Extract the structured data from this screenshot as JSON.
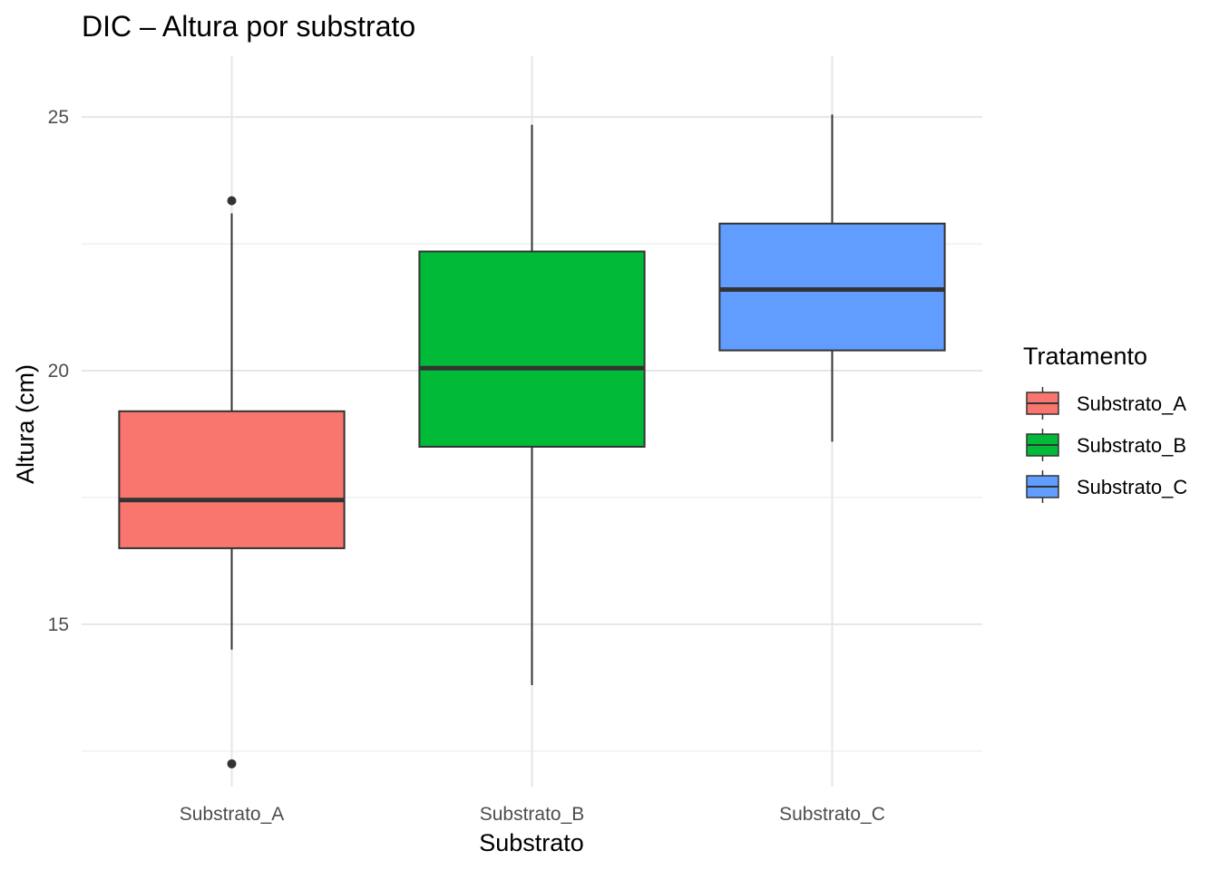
{
  "chart_data": {
    "type": "boxplot",
    "title": "DIC – Altura por substrato",
    "xlabel": "Substrato",
    "ylabel": "Altura (cm)",
    "ylim": [
      11.8,
      26.2
    ],
    "yticks": [
      15,
      20,
      25
    ],
    "grid": true,
    "legend": {
      "title": "Tratamento",
      "position": "right"
    },
    "categories": [
      "Substrato_A",
      "Substrato_B",
      "Substrato_C"
    ],
    "series": [
      {
        "name": "Substrato_A",
        "color": "#F8766D",
        "whisker_low": 14.5,
        "q1": 16.5,
        "median": 17.45,
        "q3": 19.2,
        "whisker_high": 23.1,
        "outliers": [
          23.35,
          12.25
        ]
      },
      {
        "name": "Substrato_B",
        "color": "#00BA38",
        "whisker_low": 13.8,
        "q1": 18.5,
        "median": 20.05,
        "q3": 22.35,
        "whisker_high": 24.85,
        "outliers": []
      },
      {
        "name": "Substrato_C",
        "color": "#619CFF",
        "whisker_low": 18.6,
        "q1": 20.4,
        "median": 21.6,
        "q3": 22.9,
        "whisker_high": 25.05,
        "outliers": []
      }
    ]
  }
}
